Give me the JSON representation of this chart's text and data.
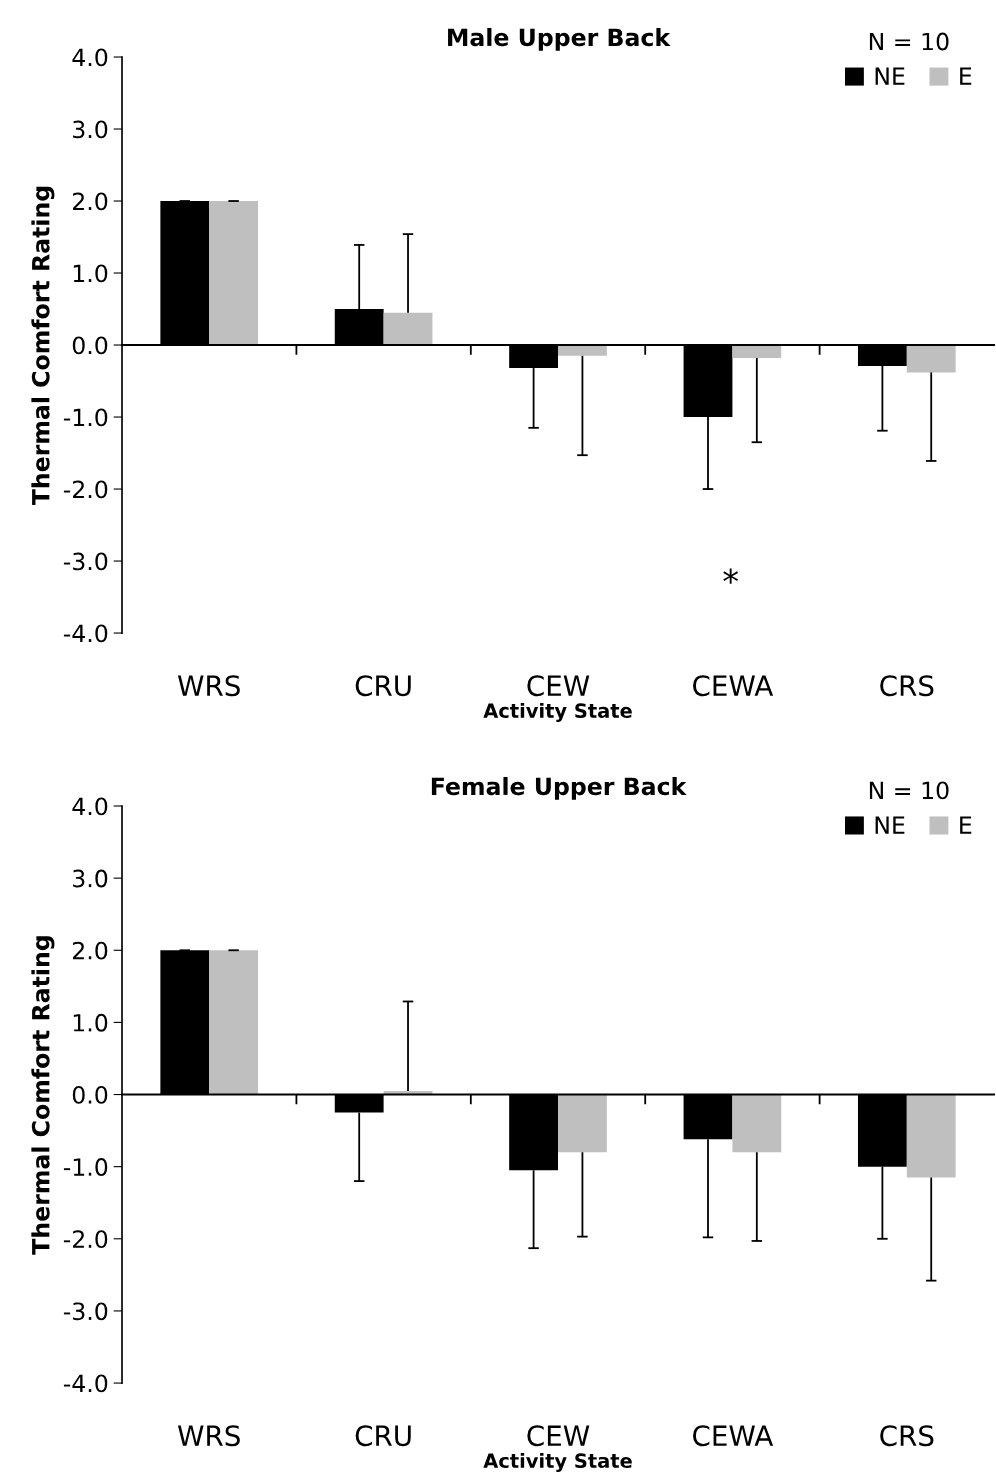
{
  "chart_data": [
    {
      "type": "bar",
      "title": "Male Upper Back",
      "xlabel": "Activity State",
      "ylabel": "Thermal Comfort Rating",
      "legend_title": "N = 10",
      "legend": "top right",
      "categories": [
        "WRS",
        "CRU",
        "CEW",
        "CEWA",
        "CRS"
      ],
      "series": [
        {
          "name": "NE",
          "color": "#000000",
          "values": [
            2.0,
            0.5,
            -0.32,
            -1.0,
            -0.29
          ],
          "errors": [
            [
              2.0,
              2.0
            ],
            [
              0.5,
              1.39
            ],
            [
              -1.15,
              -0.32
            ],
            [
              -2.0,
              -1.0
            ],
            [
              -1.19,
              -0.29
            ]
          ]
        },
        {
          "name": "E",
          "color": "#bfbfbf",
          "values": [
            2.0,
            0.45,
            -0.15,
            -0.18,
            -0.38
          ],
          "errors": [
            [
              2.0,
              2.0
            ],
            [
              0.45,
              1.54
            ],
            [
              -1.53,
              -0.15
            ],
            [
              -1.35,
              -0.18
            ],
            [
              -1.61,
              -0.38
            ]
          ]
        }
      ],
      "ylim": [
        -4,
        4
      ],
      "yticks": [
        {
          "value": -4,
          "label": "-4.0"
        },
        {
          "value": -3,
          "label": "-3.0"
        },
        {
          "value": -2,
          "label": "-2.0"
        },
        {
          "value": -1,
          "label": "-1.0"
        },
        {
          "value": 0,
          "label": "0.0"
        },
        {
          "value": 1,
          "label": "1.0"
        },
        {
          "value": 2,
          "label": "2.0"
        },
        {
          "value": 3,
          "label": "3.0"
        },
        {
          "value": 4,
          "label": "4.0"
        }
      ],
      "annotations": [
        "*"
      ]
    },
    {
      "type": "bar",
      "title": "Female Upper Back",
      "xlabel": "Activity State",
      "ylabel": "Thermal Comfort Rating",
      "legend_title": "N = 10",
      "legend": "top right",
      "categories": [
        "WRS",
        "CRU",
        "CEW",
        "CEWA",
        "CRS"
      ],
      "series": [
        {
          "name": "NE",
          "color": "#000000",
          "values": [
            2.0,
            -0.25,
            -1.05,
            -0.62,
            -1.0
          ],
          "errors": [
            [
              2.0,
              2.0
            ],
            [
              -1.2,
              -0.25
            ],
            [
              -2.13,
              -1.05
            ],
            [
              -1.98,
              -0.62
            ],
            [
              -2.0,
              -1.0
            ]
          ]
        },
        {
          "name": "E",
          "color": "#bfbfbf",
          "values": [
            2.0,
            0.05,
            -0.8,
            -0.8,
            -1.15
          ],
          "errors": [
            [
              2.0,
              2.0
            ],
            [
              0.05,
              1.29
            ],
            [
              -1.97,
              -0.8
            ],
            [
              -2.03,
              -0.8
            ],
            [
              -2.58,
              -1.15
            ]
          ]
        }
      ],
      "ylim": [
        -4,
        4
      ],
      "yticks": [
        {
          "value": -4,
          "label": "-4.0"
        },
        {
          "value": -3,
          "label": "-3.0"
        },
        {
          "value": -2,
          "label": "-2.0"
        },
        {
          "value": -1,
          "label": "-1.0"
        },
        {
          "value": 0,
          "label": "0.0"
        },
        {
          "value": 1,
          "label": "1.0"
        },
        {
          "value": 2,
          "label": "2.0"
        },
        {
          "value": 3,
          "label": "3.0"
        },
        {
          "value": 4,
          "label": "4.0"
        }
      ]
    }
  ]
}
